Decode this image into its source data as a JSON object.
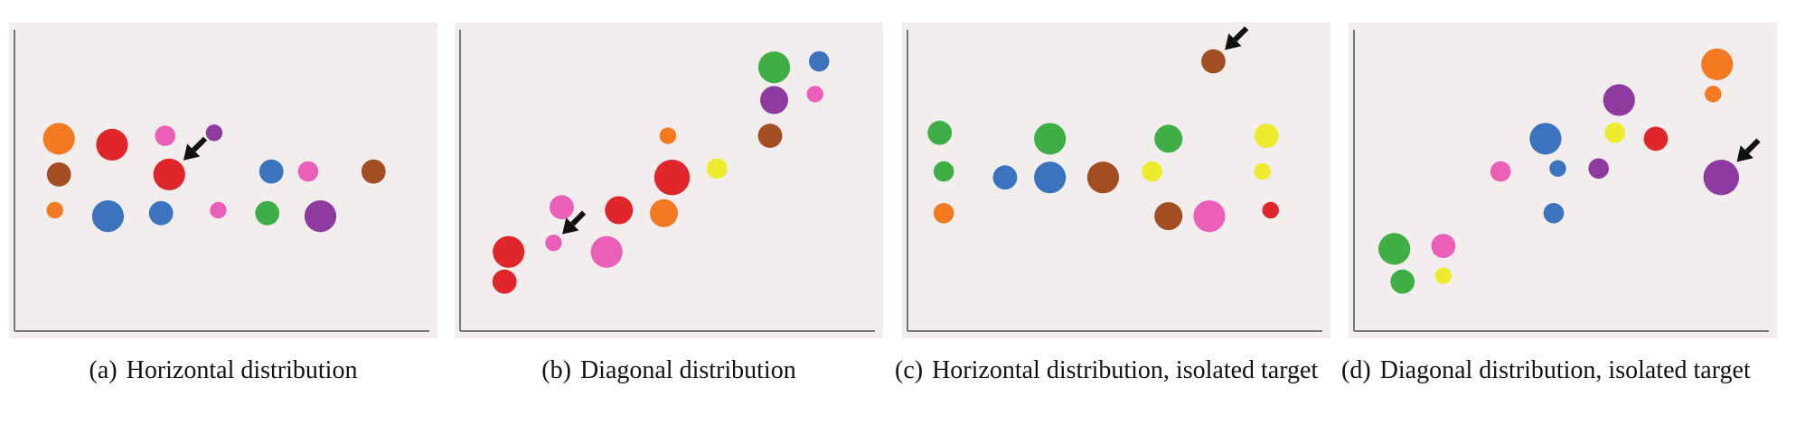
{
  "colors": {
    "orange": "#f47920",
    "red": "#e0262a",
    "brown": "#a24d22",
    "pink": "#ec5fb8",
    "purple": "#8e3a9f",
    "blue": "#3b73bf",
    "green": "#3fae46",
    "yellow": "#eeea2c",
    "axis": "#777777",
    "panel_bg": "#f2eeee",
    "arrow": "#111111"
  },
  "chart_data": [
    {
      "type": "scatter",
      "caption_tag": "(a)",
      "caption_text": "Horizontal distribution",
      "xlim": [
        0,
        100
      ],
      "ylim": [
        0,
        100
      ],
      "grid": false,
      "points": [
        {
          "x": 10,
          "y": 64,
          "size": 3,
          "color": "orange"
        },
        {
          "x": 23,
          "y": 62,
          "size": 3,
          "color": "red"
        },
        {
          "x": 36,
          "y": 65,
          "size": 1.5,
          "color": "pink"
        },
        {
          "x": 48,
          "y": 66,
          "size": 1,
          "color": "purple"
        },
        {
          "x": 10,
          "y": 52,
          "size": 2,
          "color": "brown"
        },
        {
          "x": 37,
          "y": 52,
          "size": 3,
          "color": "red",
          "target": true
        },
        {
          "x": 62,
          "y": 53,
          "size": 2,
          "color": "blue"
        },
        {
          "x": 71,
          "y": 53,
          "size": 1.5,
          "color": "pink"
        },
        {
          "x": 87,
          "y": 53,
          "size": 2,
          "color": "brown"
        },
        {
          "x": 9,
          "y": 40,
          "size": 1,
          "color": "orange"
        },
        {
          "x": 22,
          "y": 38,
          "size": 3,
          "color": "blue"
        },
        {
          "x": 35,
          "y": 39,
          "size": 2,
          "color": "blue"
        },
        {
          "x": 49,
          "y": 40,
          "size": 1,
          "color": "pink"
        },
        {
          "x": 61,
          "y": 39,
          "size": 2,
          "color": "green"
        },
        {
          "x": 74,
          "y": 38,
          "size": 3,
          "color": "purple"
        }
      ]
    },
    {
      "type": "scatter",
      "caption_tag": "(b)",
      "caption_text": "Diagonal distribution",
      "xlim": [
        0,
        100
      ],
      "ylim": [
        0,
        100
      ],
      "grid": false,
      "points": [
        {
          "x": 76,
          "y": 88,
          "size": 3,
          "color": "green"
        },
        {
          "x": 87,
          "y": 90,
          "size": 1.5,
          "color": "blue"
        },
        {
          "x": 76,
          "y": 77,
          "size": 2.5,
          "color": "purple"
        },
        {
          "x": 86,
          "y": 79,
          "size": 1,
          "color": "pink"
        },
        {
          "x": 50,
          "y": 65,
          "size": 1,
          "color": "orange"
        },
        {
          "x": 75,
          "y": 65,
          "size": 2,
          "color": "brown"
        },
        {
          "x": 62,
          "y": 54,
          "size": 1.5,
          "color": "yellow"
        },
        {
          "x": 51,
          "y": 51,
          "size": 3.5,
          "color": "red"
        },
        {
          "x": 24,
          "y": 41,
          "size": 2,
          "color": "pink"
        },
        {
          "x": 38,
          "y": 40,
          "size": 2.5,
          "color": "red"
        },
        {
          "x": 49,
          "y": 39,
          "size": 2.5,
          "color": "orange"
        },
        {
          "x": 22,
          "y": 29,
          "size": 1,
          "color": "pink",
          "target": true
        },
        {
          "x": 35,
          "y": 26,
          "size": 3,
          "color": "pink"
        },
        {
          "x": 11,
          "y": 26,
          "size": 3,
          "color": "red"
        },
        {
          "x": 10,
          "y": 16,
          "size": 2,
          "color": "red"
        }
      ]
    },
    {
      "type": "scatter",
      "caption_tag": "(c)",
      "caption_text": "Horizontal distribution, isolated target",
      "xlim": [
        0,
        100
      ],
      "ylim": [
        0,
        100
      ],
      "grid": false,
      "points": [
        {
          "x": 74,
          "y": 90,
          "size": 2,
          "color": "brown",
          "target": true
        },
        {
          "x": 7,
          "y": 66,
          "size": 2,
          "color": "green"
        },
        {
          "x": 34,
          "y": 64,
          "size": 3,
          "color": "green"
        },
        {
          "x": 63,
          "y": 64,
          "size": 2.5,
          "color": "green"
        },
        {
          "x": 87,
          "y": 65,
          "size": 2,
          "color": "yellow"
        },
        {
          "x": 8,
          "y": 53,
          "size": 1.5,
          "color": "green"
        },
        {
          "x": 23,
          "y": 51,
          "size": 2,
          "color": "blue"
        },
        {
          "x": 34,
          "y": 51,
          "size": 3,
          "color": "blue"
        },
        {
          "x": 47,
          "y": 51,
          "size": 3,
          "color": "brown"
        },
        {
          "x": 59,
          "y": 53,
          "size": 1.5,
          "color": "yellow"
        },
        {
          "x": 86,
          "y": 53,
          "size": 1,
          "color": "yellow"
        },
        {
          "x": 8,
          "y": 39,
          "size": 1.5,
          "color": "orange"
        },
        {
          "x": 63,
          "y": 38,
          "size": 2.5,
          "color": "brown"
        },
        {
          "x": 73,
          "y": 38,
          "size": 3,
          "color": "pink"
        },
        {
          "x": 88,
          "y": 40,
          "size": 1,
          "color": "red"
        }
      ]
    },
    {
      "type": "scatter",
      "caption_tag": "(d)",
      "caption_text": "Diagonal distribution, isolated target",
      "xlim": [
        0,
        100
      ],
      "ylim": [
        0,
        100
      ],
      "grid": false,
      "points": [
        {
          "x": 88,
          "y": 89,
          "size": 3,
          "color": "orange"
        },
        {
          "x": 87,
          "y": 79,
          "size": 1,
          "color": "orange"
        },
        {
          "x": 64,
          "y": 77,
          "size": 3,
          "color": "purple"
        },
        {
          "x": 46,
          "y": 64,
          "size": 3,
          "color": "blue"
        },
        {
          "x": 63,
          "y": 66,
          "size": 1.5,
          "color": "yellow"
        },
        {
          "x": 73,
          "y": 64,
          "size": 2,
          "color": "red"
        },
        {
          "x": 35,
          "y": 53,
          "size": 1.5,
          "color": "pink"
        },
        {
          "x": 49,
          "y": 54,
          "size": 1,
          "color": "blue"
        },
        {
          "x": 59,
          "y": 54,
          "size": 1.5,
          "color": "purple"
        },
        {
          "x": 89,
          "y": 51,
          "size": 3.5,
          "color": "purple",
          "target": true
        },
        {
          "x": 48,
          "y": 39,
          "size": 1.5,
          "color": "blue"
        },
        {
          "x": 9,
          "y": 27,
          "size": 3,
          "color": "green"
        },
        {
          "x": 21,
          "y": 28,
          "size": 2,
          "color": "pink"
        },
        {
          "x": 11,
          "y": 16,
          "size": 2,
          "color": "green"
        },
        {
          "x": 21,
          "y": 18,
          "size": 1,
          "color": "yellow"
        }
      ]
    }
  ]
}
